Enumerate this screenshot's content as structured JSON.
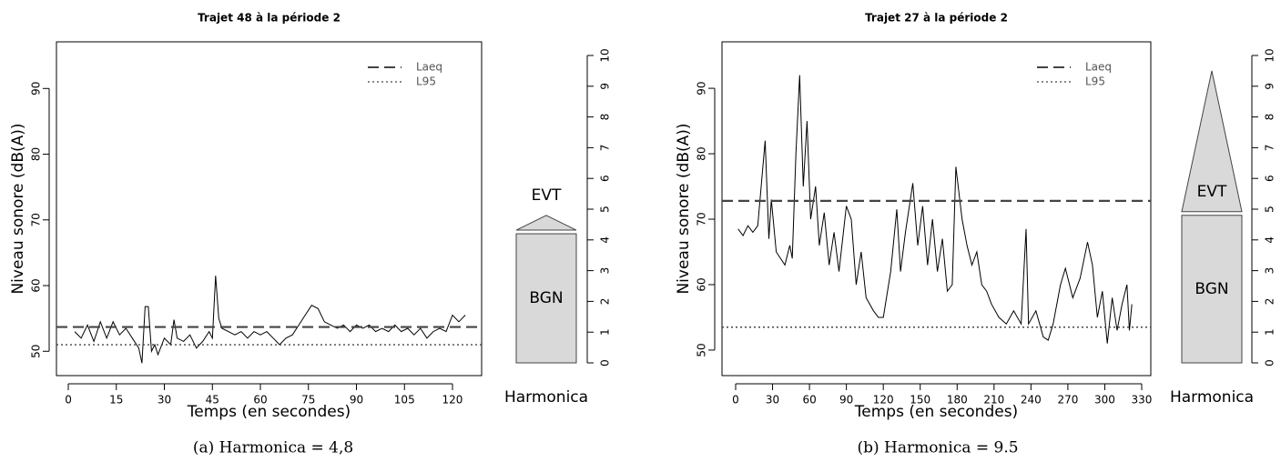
{
  "chart_data": [
    {
      "type": "line",
      "title": "Trajet 48 à la période 2",
      "xlabel": "Temps (en secondes)",
      "ylabel": "Niveau sonore (dB(A))",
      "caption": "(a) Harmonica = 4,8",
      "xlim": [
        -3.7,
        129.1
      ],
      "xticks": [
        0,
        15,
        30,
        45,
        60,
        75,
        90,
        105,
        120
      ],
      "ylim": [
        46.3,
        97.1
      ],
      "yticks": [
        50,
        60,
        70,
        80,
        90
      ],
      "color": "#000000",
      "x": [
        2,
        4,
        6,
        8,
        10,
        12,
        14,
        16,
        18,
        20,
        22,
        23,
        24,
        25,
        26,
        27,
        28,
        30,
        32,
        33,
        34,
        36,
        38,
        40,
        42,
        44,
        45,
        46,
        47,
        48,
        50,
        52,
        54,
        56,
        58,
        60,
        62,
        64,
        66,
        68,
        70,
        72,
        74,
        76,
        78,
        80,
        82,
        84,
        86,
        88,
        90,
        92,
        94,
        96,
        98,
        100,
        102,
        104,
        106,
        108,
        110,
        112,
        114,
        116,
        118,
        120,
        122,
        124
      ],
      "values": [
        53,
        52,
        54,
        51.5,
        54.5,
        52,
        54.5,
        52.5,
        53.5,
        52,
        50.5,
        48.2,
        56.8,
        56.8,
        50,
        51,
        49.5,
        52,
        51,
        54.8,
        52,
        51.5,
        52.5,
        50.5,
        51.5,
        53,
        52,
        61.5,
        55,
        53.5,
        53,
        52.5,
        53,
        52,
        53,
        52.5,
        53,
        52,
        51,
        52,
        52.5,
        54,
        55.5,
        57,
        56.5,
        54.5,
        54,
        53.5,
        54,
        53,
        54,
        53.5,
        54,
        53,
        53.5,
        53,
        54,
        53,
        53.5,
        52.5,
        53.5,
        52,
        53,
        53.5,
        53,
        55.5,
        54.5,
        55.5
      ],
      "reference_lines": [
        {
          "name": "Laeq",
          "value": 53.7,
          "style": "dashed"
        },
        {
          "name": "L95",
          "value": 51,
          "style": "dotted"
        }
      ],
      "harmonica": {
        "label": "Harmonica",
        "ylim": [
          0,
          10
        ],
        "yticks": [
          0,
          1,
          2,
          3,
          4,
          5,
          6,
          7,
          8,
          9,
          10
        ],
        "segments": [
          {
            "name": "BGN",
            "value": 4.2
          },
          {
            "name": "EVT",
            "value": 0.6
          }
        ]
      }
    },
    {
      "type": "line",
      "title": "Trajet 27 à la période 2",
      "xlabel": "Temps (en secondes)",
      "ylabel": "Niveau sonore (dB(A))",
      "caption": "(b) Harmonica = 9.5",
      "xlim": [
        -11.1,
        337.4
      ],
      "xticks": [
        0,
        30,
        60,
        90,
        120,
        150,
        180,
        210,
        240,
        270,
        300,
        330
      ],
      "ylim": [
        46.1,
        97.1
      ],
      "yticks": [
        50,
        60,
        70,
        80,
        90
      ],
      "color": "#000000",
      "x": [
        2,
        6,
        10,
        14,
        18,
        24,
        27,
        29,
        33,
        40,
        44,
        46,
        49,
        52,
        55,
        58,
        61,
        65,
        68,
        72,
        76,
        80,
        84,
        90,
        94,
        98,
        102,
        106,
        112,
        116,
        120,
        126,
        131,
        134,
        138,
        144,
        148,
        152,
        156,
        160,
        164,
        168,
        172,
        176,
        179,
        184,
        188,
        192,
        196,
        200,
        204,
        208,
        214,
        220,
        226,
        232,
        236,
        238,
        244,
        250,
        254,
        258,
        264,
        268,
        274,
        280,
        286,
        290,
        294,
        298,
        302,
        306,
        310,
        314,
        318,
        320,
        322
      ],
      "values": [
        68.5,
        67.5,
        69,
        68,
        69,
        82,
        67,
        73,
        65,
        63,
        66,
        64,
        80,
        92,
        75,
        85,
        70,
        75,
        66,
        71,
        63,
        68,
        62,
        72,
        70,
        60,
        65,
        58,
        56,
        55,
        55,
        62,
        71.5,
        62,
        68,
        75.5,
        66,
        72,
        63,
        70,
        62,
        67,
        59,
        60,
        78,
        70,
        66,
        63,
        65,
        60,
        59,
        57,
        55,
        54,
        56,
        54,
        68.5,
        54,
        56,
        52,
        51.5,
        54,
        60,
        62.5,
        58,
        61,
        66.5,
        63,
        55,
        59,
        51,
        58,
        53,
        57,
        60,
        53,
        57
      ],
      "reference_lines": [
        {
          "name": "Laeq",
          "value": 72.8,
          "style": "dashed"
        },
        {
          "name": "L95",
          "value": 53.5,
          "style": "dotted"
        }
      ],
      "harmonica": {
        "label": "Harmonica",
        "ylim": [
          0,
          10
        ],
        "yticks": [
          0,
          1,
          2,
          3,
          4,
          5,
          6,
          7,
          8,
          9,
          10
        ],
        "segments": [
          {
            "name": "BGN",
            "value": 4.8
          },
          {
            "name": "EVT",
            "value": 4.7
          }
        ]
      }
    }
  ]
}
